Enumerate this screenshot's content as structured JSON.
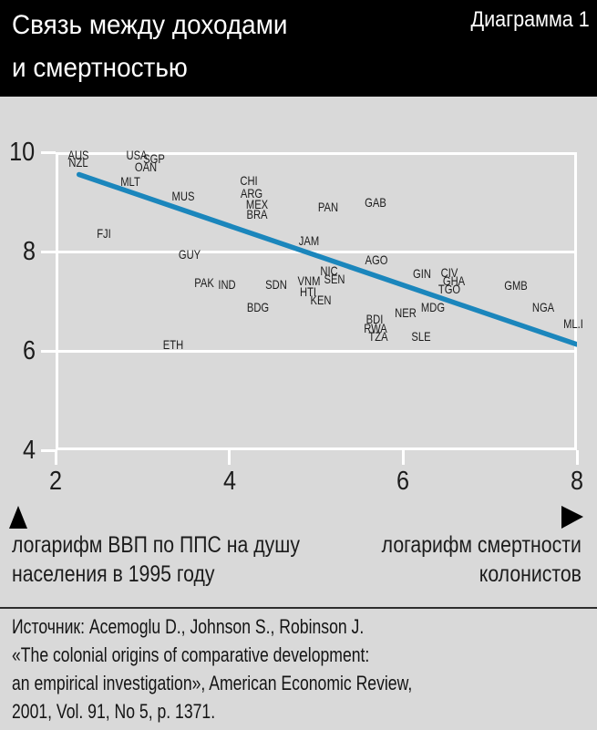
{
  "header": {
    "title_line1": "Связь между доходами",
    "title_line2": "и смертностью",
    "corner_label": "Диаграмма 1"
  },
  "chart_data": {
    "type": "scatter",
    "title": "Связь между доходами и смертностью",
    "x_axis": {
      "range": [
        2,
        8
      ],
      "ticks": [
        2,
        4,
        6,
        8
      ],
      "label": "логарифм смертности колонистов"
    },
    "y_axis": {
      "range": [
        4,
        10
      ],
      "ticks": [
        10,
        8,
        6,
        4
      ],
      "label": "логарифм ВВП по ППС на душу населения в 1995 году"
    },
    "grid": "horizontal-only",
    "trend_line": {
      "x_start": 2.27,
      "y_start": 9.55,
      "x_end": 8.0,
      "y_end": 6.13
    },
    "points": [
      {
        "label": "AUS",
        "x": 2.26,
        "y": 9.94
      },
      {
        "label": "NZL",
        "x": 2.26,
        "y": 9.8
      },
      {
        "label": "USA",
        "x": 2.93,
        "y": 9.94
      },
      {
        "label": "SGP",
        "x": 3.13,
        "y": 9.87
      },
      {
        "label": "OAN",
        "x": 3.04,
        "y": 9.71
      },
      {
        "label": "MLT",
        "x": 2.86,
        "y": 9.41
      },
      {
        "label": "CHI",
        "x": 4.22,
        "y": 9.43
      },
      {
        "label": "ARG",
        "x": 4.26,
        "y": 9.17
      },
      {
        "label": "MUS",
        "x": 3.47,
        "y": 9.12
      },
      {
        "label": "MEX",
        "x": 4.32,
        "y": 8.95
      },
      {
        "label": "GAB",
        "x": 5.68,
        "y": 8.99
      },
      {
        "label": "PAN",
        "x": 5.14,
        "y": 8.9
      },
      {
        "label": "BRA",
        "x": 4.32,
        "y": 8.75
      },
      {
        "label": "FJI",
        "x": 2.56,
        "y": 8.37
      },
      {
        "label": "JAM",
        "x": 4.92,
        "y": 8.22
      },
      {
        "label": "GUY",
        "x": 3.54,
        "y": 7.94
      },
      {
        "label": "AGO",
        "x": 5.69,
        "y": 7.83
      },
      {
        "label": "NIC",
        "x": 5.15,
        "y": 7.61
      },
      {
        "label": "CIV",
        "x": 6.53,
        "y": 7.58
      },
      {
        "label": "GIN",
        "x": 6.22,
        "y": 7.56
      },
      {
        "label": "SEN",
        "x": 5.21,
        "y": 7.45
      },
      {
        "label": "VNM",
        "x": 4.92,
        "y": 7.41
      },
      {
        "label": "GHA",
        "x": 6.58,
        "y": 7.41
      },
      {
        "label": "PAK",
        "x": 3.71,
        "y": 7.38
      },
      {
        "label": "IND",
        "x": 3.97,
        "y": 7.34
      },
      {
        "label": "SDN",
        "x": 4.54,
        "y": 7.34
      },
      {
        "label": "GMB",
        "x": 7.3,
        "y": 7.32
      },
      {
        "label": "TGO",
        "x": 6.53,
        "y": 7.25
      },
      {
        "label": "HTI",
        "x": 4.91,
        "y": 7.19
      },
      {
        "label": "KEN",
        "x": 5.05,
        "y": 7.03
      },
      {
        "label": "BDG",
        "x": 4.33,
        "y": 6.88
      },
      {
        "label": "MDG",
        "x": 6.34,
        "y": 6.88
      },
      {
        "label": "NGA",
        "x": 7.61,
        "y": 6.88
      },
      {
        "label": "NER",
        "x": 6.03,
        "y": 6.77
      },
      {
        "label": "BDI",
        "x": 5.67,
        "y": 6.64
      },
      {
        "label": "ML.I",
        "x": 7.96,
        "y": 6.55
      },
      {
        "label": "RWA",
        "x": 5.68,
        "y": 6.46
      },
      {
        "label": "TZA",
        "x": 5.71,
        "y": 6.29
      },
      {
        "label": "SLE",
        "x": 6.21,
        "y": 6.29
      },
      {
        "label": "ETH",
        "x": 3.35,
        "y": 6.13
      }
    ]
  },
  "axis_annotations": {
    "left_line1": "логарифм ВВП по ППС на душу",
    "left_line2": "населения в 1995 году",
    "right_line1": "логарифм смертности",
    "right_line2": "колонистов"
  },
  "icons": {
    "left_axis_marker": "triangle-up",
    "right_axis_marker": "triangle-right"
  },
  "source": {
    "line1": "Источник: Acemoglu D., Johnson S., Robinson J.",
    "line2": "«The colonial origins of comparative development:",
    "line3": "an empirical investigation», American Economic Review,",
    "line4": "2001, Vol. 91, No 5, p. 1371."
  },
  "colors": {
    "background": "#d9d9d9",
    "header_background": "#000000",
    "grid_line": "#ffffff",
    "trend_line": "#1b86bc",
    "text": "#1c1c1c",
    "header_text": "#ffffff"
  }
}
